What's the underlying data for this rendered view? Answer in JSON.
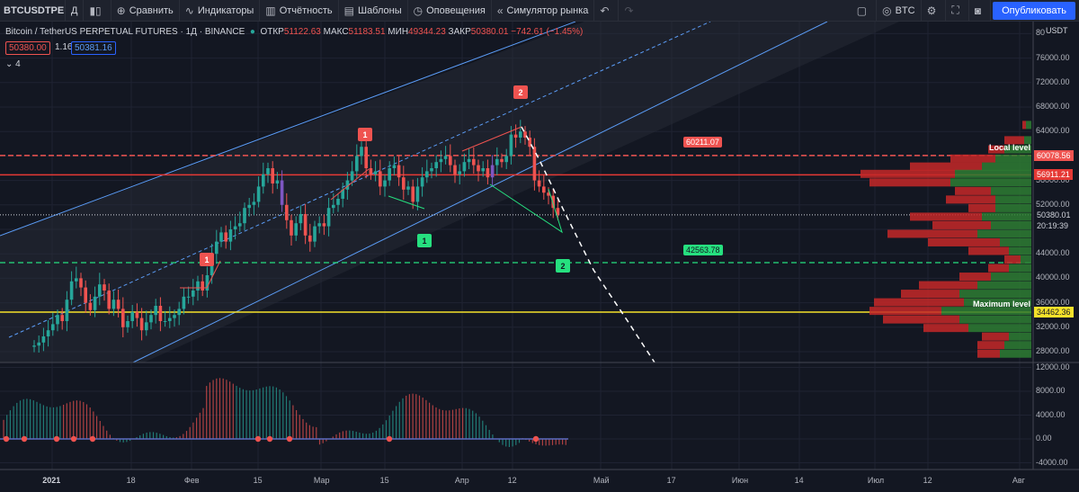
{
  "toolbar": {
    "symbol": "BTCUSDTPERP",
    "interval": "Д",
    "compare_label": "Сравнить",
    "indicators_label": "Индикаторы",
    "reports_label": "Отчётность",
    "templates_label": "Шаблоны",
    "alerts_label": "Оповещения",
    "replay_label": "Симулятор рынка",
    "currency": "BTC",
    "publish_label": "Опубликовать"
  },
  "header": {
    "title": "Bitcoin / TetherUS PERPETUAL FUTURES · 1Д · BINANCE",
    "open_label": "ОТКР",
    "open": "51122.63",
    "high_label": "МАКС",
    "high": "51183.51",
    "low_label": "МИН",
    "low": "49344.23",
    "close_label": "ЗАКР",
    "close": "50380.01",
    "change": "−742.61 (−1.45%)",
    "bid": "50380.00",
    "spread": "1.16",
    "ask": "50381.16",
    "indicator_count": "4"
  },
  "price_axis": {
    "unit": "USDT",
    "ticks": [
      "80",
      "76000.00",
      "72000.00",
      "68000.00",
      "64000.00",
      "60000.00",
      "56000.00",
      "52000.00",
      "48000.00",
      "44000.00",
      "40000.00",
      "36000.00",
      "32000.00",
      "28000.00"
    ],
    "current_price": "50380.01",
    "countdown": "20:19:39",
    "level_local": "60078.56",
    "level_red": "56911.21",
    "level_max": "34462.36"
  },
  "osc_axis": {
    "ticks": [
      "12000.00",
      "8000.00",
      "4000.00",
      "0.00",
      "-4000.00"
    ]
  },
  "time_axis": {
    "ticks": [
      "2021",
      "18",
      "Фев",
      "15",
      "Мар",
      "15",
      "Апр",
      "12",
      "Май",
      "17",
      "Июн",
      "14",
      "Июл",
      "12",
      "Авг"
    ]
  },
  "annotations": {
    "price_tag_top": "60211.07",
    "price_tag_mid": "42563.78",
    "local_level": "Local level",
    "maximum_level": "Maximum level",
    "signals": [
      "1",
      "1",
      "2",
      "1",
      "2"
    ]
  },
  "colors": {
    "up": "#26a69a",
    "down": "#ef5350",
    "volume_profile_buy": "#2e7d32",
    "volume_profile_sell": "#c62828",
    "channel": "#5b9cf6",
    "max_level": "#f5e12a",
    "background": "#131722"
  },
  "icons": [
    "chevron-down-icon",
    "candles-icon",
    "plus-circle-icon",
    "indicators-icon",
    "reports-icon",
    "templates-icon",
    "alarm-icon",
    "replay-icon",
    "undo-icon",
    "redo-icon",
    "layout-icon",
    "settings-icon",
    "fullscreen-icon",
    "camera-icon"
  ]
}
